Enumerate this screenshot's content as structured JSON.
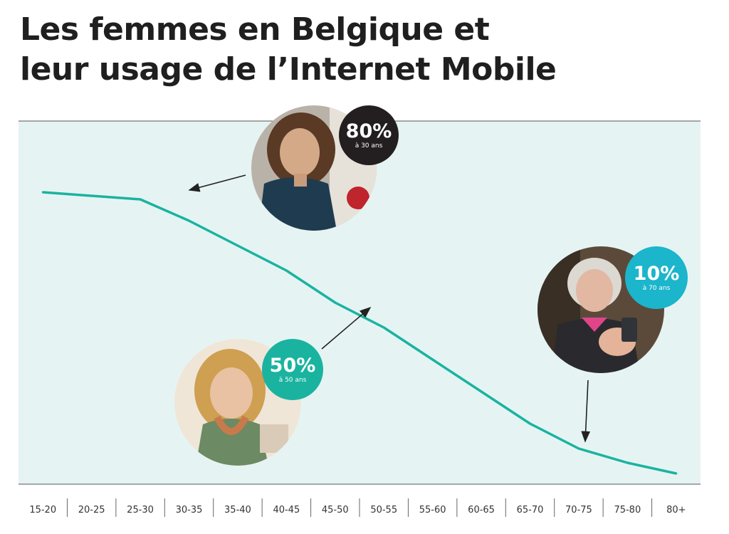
{
  "title": {
    "line1": "Les femmes en Belgique et",
    "line2": "leur usage de l’Internet Mobile"
  },
  "chart_data": {
    "type": "line",
    "categories": [
      "15-20",
      "20-25",
      "25-30",
      "30-35",
      "35-40",
      "40-45",
      "45-50",
      "50-55",
      "55-60",
      "60-65",
      "65-70",
      "70-75",
      "75-80",
      "80+"
    ],
    "values": [
      82,
      81,
      80,
      74,
      67,
      60,
      51,
      44,
      35,
      26,
      17,
      10,
      6,
      3
    ],
    "ylim": [
      0,
      100
    ],
    "grid": false,
    "colors": {
      "background": "#e5f4f3",
      "line": "#1ab3a0",
      "axis": "#555555"
    },
    "callouts": [
      {
        "value": "80%",
        "label": "à 30 ans",
        "color": "#231f20",
        "photo": "woman-curly-hair-photo"
      },
      {
        "value": "50%",
        "label": "à 50 ans",
        "color": "#1ab3a0",
        "photo": "blonde-woman-phone-photo"
      },
      {
        "value": "10%",
        "label": "à 70 ans",
        "color": "#1bb5cc",
        "photo": "elderly-woman-phone-photo"
      }
    ]
  }
}
